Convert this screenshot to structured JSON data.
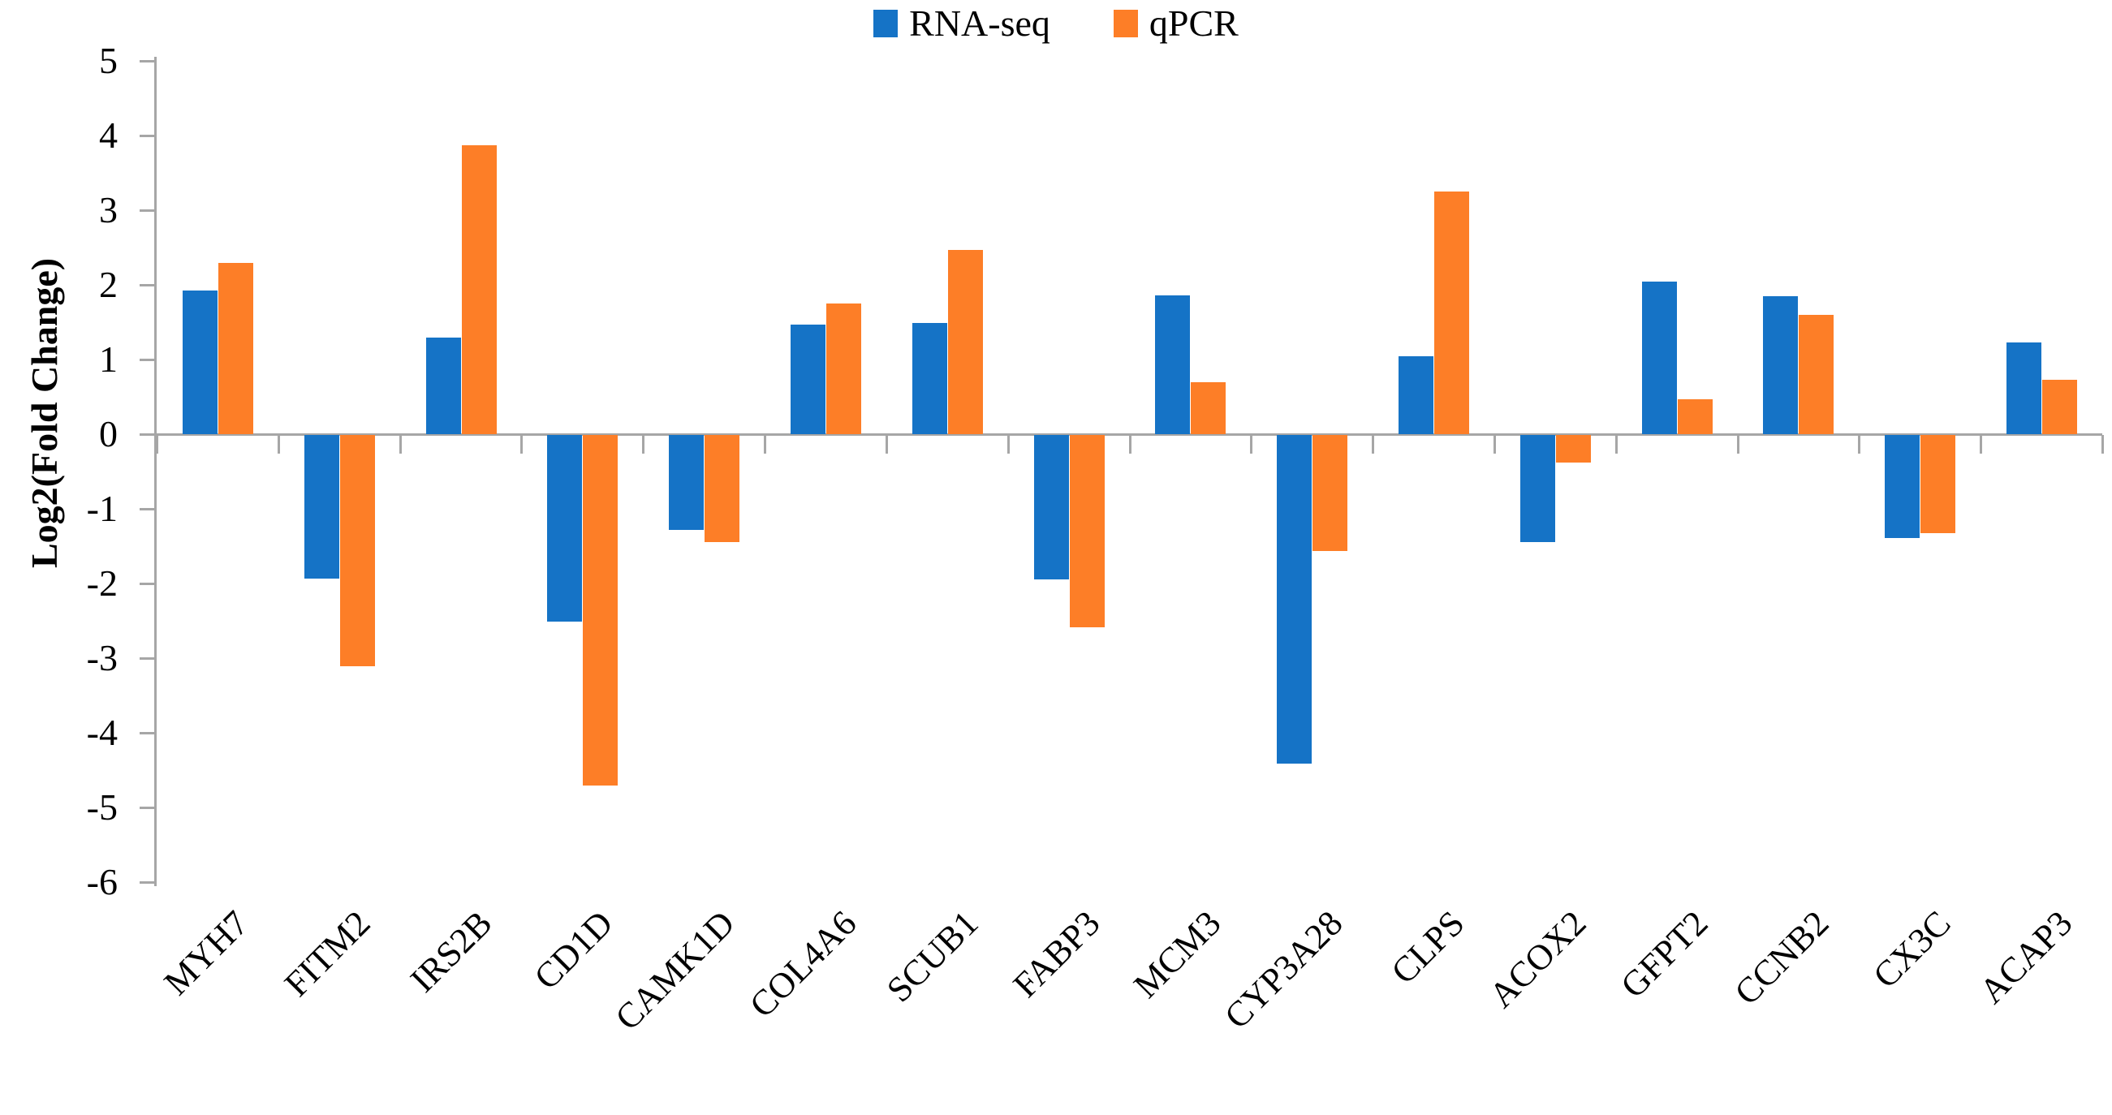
{
  "chart_data": {
    "type": "bar",
    "title": "",
    "xlabel": "",
    "ylabel": "Log2(Fold Change)",
    "ylim": [
      -6,
      5
    ],
    "ytick_step": 1,
    "yticks": [
      5,
      4,
      3,
      2,
      1,
      0,
      -1,
      -2,
      -3,
      -4,
      -5,
      -6
    ],
    "grid": false,
    "legend_position": "top-center",
    "categories": [
      "MYH7",
      "FITM2",
      "IRS2B",
      "CD1D",
      "CAMK1D",
      "COL4A6",
      "SCUB1",
      "FABP3",
      "MCM3",
      "CYP3A28",
      "CLPS",
      "ACOX2",
      "GFPT2",
      "CCNB2",
      "CX3C",
      "ACAP3"
    ],
    "series": [
      {
        "name": "RNA-seq",
        "color": "#1573C6",
        "values": [
          1.92,
          -1.92,
          1.29,
          -2.5,
          -1.27,
          1.47,
          1.49,
          -1.93,
          1.86,
          -4.4,
          1.04,
          -1.43,
          2.04,
          1.85,
          -1.38,
          1.23
        ]
      },
      {
        "name": "qPCR",
        "color": "#FD7E27",
        "values": [
          2.29,
          -3.1,
          3.87,
          -4.7,
          -1.44,
          1.75,
          2.47,
          -2.58,
          0.7,
          -1.55,
          3.25,
          -0.37,
          0.47,
          1.6,
          -1.31,
          0.73
        ]
      }
    ],
    "axis_color": "#a6a6a6",
    "text_color": "#000000"
  }
}
